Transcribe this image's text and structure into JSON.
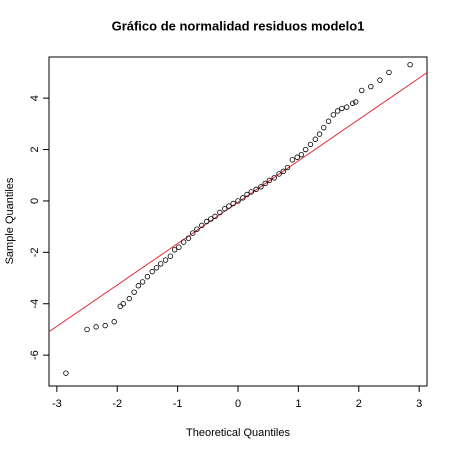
{
  "chart_data": {
    "type": "scatter",
    "title": "Gráfico de normalidad residuos modelo1",
    "x_label": "Theoretical Quantiles",
    "y_label": "Sample Quantiles",
    "x": [
      -2.85,
      -2.5,
      -2.35,
      -2.2,
      -2.05,
      -1.95,
      -1.9,
      -1.8,
      -1.72,
      -1.65,
      -1.58,
      -1.5,
      -1.42,
      -1.35,
      -1.28,
      -1.2,
      -1.12,
      -1.05,
      -0.98,
      -0.9,
      -0.82,
      -0.75,
      -0.68,
      -0.6,
      -0.52,
      -0.45,
      -0.38,
      -0.3,
      -0.22,
      -0.15,
      -0.08,
      0,
      0.08,
      0.15,
      0.22,
      0.3,
      0.38,
      0.45,
      0.52,
      0.6,
      0.68,
      0.75,
      0.82,
      0.9,
      0.98,
      1.05,
      1.12,
      1.2,
      1.28,
      1.35,
      1.42,
      1.5,
      1.58,
      1.65,
      1.72,
      1.8,
      1.9,
      1.95,
      2.05,
      2.2,
      2.35,
      2.5,
      2.85
    ],
    "y": [
      -6.7,
      -5.0,
      -4.9,
      -4.85,
      -4.7,
      -4.1,
      -4.0,
      -3.8,
      -3.55,
      -3.3,
      -3.15,
      -2.95,
      -2.75,
      -2.6,
      -2.45,
      -2.3,
      -2.15,
      -1.9,
      -1.8,
      -1.6,
      -1.45,
      -1.25,
      -1.1,
      -0.95,
      -0.8,
      -0.7,
      -0.6,
      -0.45,
      -0.3,
      -0.2,
      -0.1,
      0,
      0.12,
      0.25,
      0.35,
      0.45,
      0.55,
      0.68,
      0.8,
      0.9,
      1.05,
      1.15,
      1.3,
      1.6,
      1.7,
      1.8,
      2.0,
      2.2,
      2.4,
      2.6,
      2.85,
      3.1,
      3.35,
      3.5,
      3.6,
      3.65,
      3.8,
      3.85,
      4.3,
      4.45,
      4.7,
      5.0,
      5.3
    ],
    "color": "#000000",
    "reference_line": {
      "intercept": -0.05,
      "slope": 1.61,
      "color": "#e0303c"
    },
    "xlim": [
      -3.13,
      3.13
    ],
    "xticks": [
      -3,
      -2,
      -1,
      0,
      1,
      2,
      3
    ],
    "ylim": [
      -7.2,
      5.6
    ],
    "yticks": [
      -6,
      -4,
      -2,
      0,
      2,
      4
    ]
  }
}
